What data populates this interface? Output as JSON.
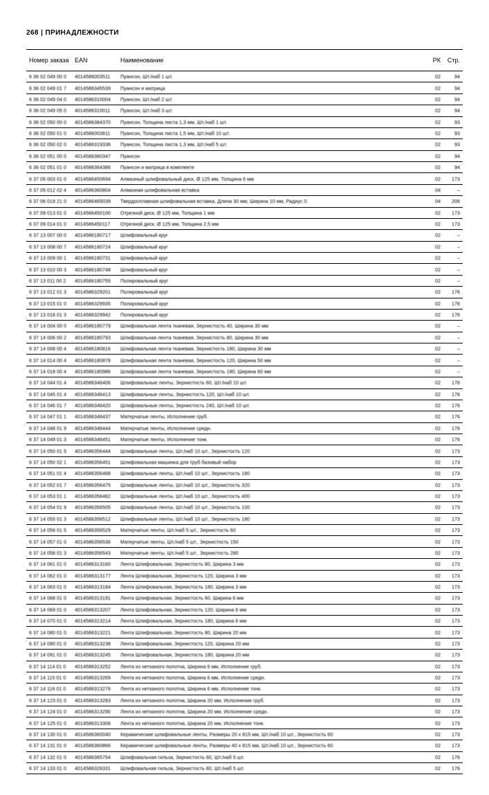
{
  "page_header": "268 | ПРИНАДЛЕЖНОСТИ",
  "columns": {
    "order": "Номер заказа",
    "ean": "EAN",
    "name": "Наименование",
    "rk": "РК",
    "pg": "Стр."
  },
  "rows": [
    {
      "order": "6 36 02 049 00 0",
      "ean": "4014586003511",
      "name": "Пуансон, Шт./наб 1 шт.",
      "rk": "02",
      "pg": "94"
    },
    {
      "order": "6 36 02 049 01 7",
      "ean": "4014586345539",
      "name": "Пуансон и матрица",
      "rk": "02",
      "pg": "94"
    },
    {
      "order": "6 36 02 049 04 0",
      "ean": "4014586310004",
      "name": "Пуансон, Шт./наб 2 шт.",
      "rk": "02",
      "pg": "94"
    },
    {
      "order": "6 36 02 049 05 0",
      "ean": "4014586310011",
      "name": "Пуансон, Шт./наб 3 шт.",
      "rk": "02",
      "pg": "94"
    },
    {
      "order": "6 36 02 050 00 0",
      "ean": "4014586384370",
      "name": "Пуансон, Толщина листа 1,3 мм, Шт./наб 1 шт.",
      "rk": "02",
      "pg": "93"
    },
    {
      "order": "6 36 02 050 01 0",
      "ean": "4014586003611",
      "name": "Пуансон, Толщина листа 1,5 мм, Шт./наб 10 шт.",
      "rk": "02",
      "pg": "93"
    },
    {
      "order": "6 36 02 050 02 0",
      "ean": "4014586319336",
      "name": "Пуансон, Толщина листа 1,3 мм, Шт./наб 5 шт.",
      "rk": "02",
      "pg": "93"
    },
    {
      "order": "6 36 02 051 00 0",
      "ean": "4014586360347",
      "name": "Пуансон",
      "rk": "02",
      "pg": "94"
    },
    {
      "order": "6 36 02 051 01 0",
      "ean": "4014586364386",
      "name": "Пуансон и матрица в комплекте",
      "rk": "02",
      "pg": "94"
    },
    {
      "order": "6 37 05 003 01 0",
      "ean": "4014586450694",
      "name": "Алмазный шлифовальный диск, Ø 125 мм, Толщина 6 мм",
      "rk": "02",
      "pg": "173"
    },
    {
      "order": "6 37 05 012 02 4",
      "ean": "4014586360804",
      "name": "Алмазная шлифовальная вставка",
      "rk": "04",
      "pg": "–"
    },
    {
      "order": "6 37 06 019 21 0",
      "ean": "4014586465039",
      "name": "Твердосплавная шлифовальная вставка, Длина 30 мм, Ширина 10 мм, Радиус 0.",
      "rk": "04",
      "pg": "206"
    },
    {
      "order": "6 37 09 013 01 0",
      "ean": "4014586450100",
      "name": "Отрезной диск, Ø 125 мм, Толщина 1 мм",
      "rk": "02",
      "pg": "173"
    },
    {
      "order": "6 37 09 014 01 0",
      "ean": "4014586450117",
      "name": "Отрезной диск, Ø 125 мм, Толщина 2,5 мм",
      "rk": "02",
      "pg": "173"
    },
    {
      "order": "6 37 13 007 00 0",
      "ean": "4014586180717",
      "name": "Шлифовальный круг",
      "rk": "02",
      "pg": "–"
    },
    {
      "order": "6 37 13 008 00 7",
      "ean": "4014586180724",
      "name": "Шлифовальный круг",
      "rk": "02",
      "pg": "–"
    },
    {
      "order": "6 37 13 009 00 1",
      "ean": "4014586180731",
      "name": "Шлифовальный круг",
      "rk": "02",
      "pg": "–"
    },
    {
      "order": "6 37 13 010 00 3",
      "ean": "4014586180748",
      "name": "Шлифовальный круг",
      "rk": "02",
      "pg": "–"
    },
    {
      "order": "6 37 13 011 00 2",
      "ean": "4014586180755",
      "name": "Полировальный круг",
      "rk": "02",
      "pg": "–"
    },
    {
      "order": "6 37 13 012 01 3",
      "ean": "4014586329201",
      "name": "Полировальный круг",
      "rk": "02",
      "pg": "176"
    },
    {
      "order": "6 37 13 015 01 0",
      "ean": "4014586329935",
      "name": "Полировальный круг",
      "rk": "02",
      "pg": "176"
    },
    {
      "order": "6 37 13 016 01 3",
      "ean": "4014586329942",
      "name": "Полировальный круг",
      "rk": "02",
      "pg": "176"
    },
    {
      "order": "6 37 14 004 00 0",
      "ean": "4014586180779",
      "name": "Шлифовальная лента тканевая, Зернистость 40, Ширина 30 мм",
      "rk": "02",
      "pg": "–"
    },
    {
      "order": "6 37 14 006 00 2",
      "ean": "4014586180793",
      "name": "Шлифовальная лента тканевая, Зернистость 80, Ширина 30 мм",
      "rk": "02",
      "pg": "–"
    },
    {
      "order": "6 37 14 008 00 4",
      "ean": "4014586180816",
      "name": "Шлифовальная лента тканевая, Зернистость 180, Ширина 30 мм",
      "rk": "02",
      "pg": "–"
    },
    {
      "order": "6 37 14 014 00 4",
      "ean": "4014586180878",
      "name": "Шлифовальная лента тканевая, Зернистость 120, Ширина 50 мм",
      "rk": "02",
      "pg": "–"
    },
    {
      "order": "6 37 14 018 00 4",
      "ean": "4014586180986",
      "name": "Шлифовальная лента тканевая, Зернистость 180, Ширина 60 мм",
      "rk": "02",
      "pg": "–"
    },
    {
      "order": "6 37 14 044 01 4",
      "ean": "4014586346406",
      "name": "Шлифовальные ленты, Зернистость 60, Шт./наб 10 шт.",
      "rk": "02",
      "pg": "176"
    },
    {
      "order": "6 37 14 045 01 4",
      "ean": "4014586346413",
      "name": "Шлифовальные ленты, Зернистость 120, Шт./наб 10 шт.",
      "rk": "02",
      "pg": "176"
    },
    {
      "order": "6 37 14 046 01 7",
      "ean": "4014586346420",
      "name": "Шлифовальные ленты, Зернистость 240, Шт./наб 10 шт.",
      "rk": "02",
      "pg": "176"
    },
    {
      "order": "6 37 14 047 01 1",
      "ean": "4014586346437",
      "name": "Матерчатые ленты, Исполнение груб.",
      "rk": "02",
      "pg": "176"
    },
    {
      "order": "6 37 14 048 01 9",
      "ean": "4014586346444",
      "name": "Матерчатые ленты, Исполнение средн.",
      "rk": "02",
      "pg": "176"
    },
    {
      "order": "6 37 14 049 01 3",
      "ean": "4014586346451",
      "name": "Матерчатые ленты, Исполнение тонк.",
      "rk": "02",
      "pg": "176"
    },
    {
      "order": "6 37 14 050 01 5",
      "ean": "4014586356444",
      "name": "Шлифовальные ленты, Шт./наб 10 шт., Зернистость 120",
      "rk": "02",
      "pg": "173"
    },
    {
      "order": "6 37 14 050 02 1",
      "ean": "4014586356451",
      "name": "Шлифовальная машинка для труб базовый набор",
      "rk": "02",
      "pg": "173"
    },
    {
      "order": "6 37 14 051 01 4",
      "ean": "4014586356468",
      "name": "Шлифовальные ленты, Шт./наб 10 шт., Зернистость 180",
      "rk": "02",
      "pg": "173"
    },
    {
      "order": "6 37 14 052 01 7",
      "ean": "4014586356475",
      "name": "Шлифовальные ленты, Шт./наб 10 шт., Зернистость 320",
      "rk": "02",
      "pg": "173"
    },
    {
      "order": "6 37 14 053 01 1",
      "ean": "4014586356482",
      "name": "Шлифовальные ленты, Шт./наб 10 шт., Зернистость 400",
      "rk": "02",
      "pg": "173"
    },
    {
      "order": "6 37 14 054 01 9",
      "ean": "4014586356505",
      "name": "Шлифовальные ленты, Шт./наб 10 шт., Зернистость 100",
      "rk": "02",
      "pg": "173"
    },
    {
      "order": "6 37 14 055 01 3",
      "ean": "4014586356512",
      "name": "Шлифовальные ленты, Шт./наб 10 шт., Зернистость 180",
      "rk": "02",
      "pg": "173"
    },
    {
      "order": "6 37 14 056 01 5",
      "ean": "4014586356529",
      "name": "Матерчатые ленты, Шт./наб 5 шт., Зернистость 60",
      "rk": "02",
      "pg": "173"
    },
    {
      "order": "6 37 14 057 01 0",
      "ean": "4014586356536",
      "name": "Матерчатые ленты, Шт./наб 5 шт., Зернистость 150",
      "rk": "02",
      "pg": "173"
    },
    {
      "order": "6 37 14 058 01 3",
      "ean": "4014586356543",
      "name": "Матерчатые ленты, Шт./наб 5 шт., Зернистость 280",
      "rk": "02",
      "pg": "173"
    },
    {
      "order": "6 37 14 061 01 0",
      "ean": "4014586313160",
      "name": "Лента Шлифовальная, Зернистость 80, Ширина 3 мм",
      "rk": "02",
      "pg": "173"
    },
    {
      "order": "6 37 14 062 01 0",
      "ean": "4014586313177",
      "name": "Лента Шлифовальная, Зернистость 120, Ширина 3 мм",
      "rk": "02",
      "pg": "173"
    },
    {
      "order": "6 37 14 063 01 0",
      "ean": "4014586313184",
      "name": "Лента Шлифовальная, Зернистость 180, Ширина 3 мм",
      "rk": "02",
      "pg": "173"
    },
    {
      "order": "6 37 14 068 01 0",
      "ean": "4014586313191",
      "name": "Лента Шлифовальная, Зернистость 60, Ширина 6 мм",
      "rk": "02",
      "pg": "173"
    },
    {
      "order": "6 37 14 069 01 0",
      "ean": "4014586313207",
      "name": "Лента Шлифовальная, Зернистость 120, Ширина 6 мм",
      "rk": "02",
      "pg": "173"
    },
    {
      "order": "6 37 14 070 01 0",
      "ean": "4014586313214",
      "name": "Лента Шлифовальная, Зернистость 180, Ширина 6 мм",
      "rk": "02",
      "pg": "173"
    },
    {
      "order": "6 37 14 080 01 0",
      "ean": "4014586313221",
      "name": "Лента Шлифовальная, Зернистость 80, Ширина 20 мм",
      "rk": "02",
      "pg": "173"
    },
    {
      "order": "6 37 14 090 01 0",
      "ean": "4014586313238",
      "name": "Лента Шлифовальная, Зернистость 120, Ширина 20 мм",
      "rk": "02",
      "pg": "173"
    },
    {
      "order": "6 37 14 091 01 0",
      "ean": "4014586313245",
      "name": "Лента Шлифовальная, Зернистость 180, Ширина 20 мм",
      "rk": "02",
      "pg": "173"
    },
    {
      "order": "6 37 14 114 01 0",
      "ean": "4014586313252",
      "name": "Лента из нетканого полотна, Ширина 6 мм, Исполнение груб.",
      "rk": "02",
      "pg": "173"
    },
    {
      "order": "6 37 14 115 01 0",
      "ean": "4014586313269",
      "name": "Лента из нетканого полотна, Ширина 6 мм, Исполнение средн.",
      "rk": "02",
      "pg": "173"
    },
    {
      "order": "6 37 14 116 01 0",
      "ean": "4014586313276",
      "name": "Лента из нетканого полотна, Ширина 6 мм, Исполнение тонк.",
      "rk": "02",
      "pg": "173"
    },
    {
      "order": "6 37 14 123 01 0",
      "ean": "4014586313283",
      "name": "Лента из нетканого полотна, Ширина 20 мм, Исполнение груб.",
      "rk": "02",
      "pg": "173"
    },
    {
      "order": "6 37 14 124 01 0",
      "ean": "4014586313290",
      "name": "Лента из нетканого полотна, Ширина 20 мм, Исполнение средн.",
      "rk": "02",
      "pg": "173"
    },
    {
      "order": "6 37 14 125 01 0",
      "ean": "4014586313306",
      "name": "Лента из нетканого полотна, Ширина 20 мм, Исполнение тонк.",
      "rk": "02",
      "pg": "173"
    },
    {
      "order": "6 37 14 130 01 0",
      "ean": "4014586360040",
      "name": "Керамические шлифовальные ленты, Размеры 20 x 815 мм, Шт./наб 10 шт., Зернистость 60",
      "rk": "02",
      "pg": "173"
    },
    {
      "order": "6 37 14 131 01 0",
      "ean": "4014586360866",
      "name": "Керамические шлифовальные ленты, Размеры 40 x 815 мм, Шт./наб 10 шт., Зернистость 60",
      "rk": "02",
      "pg": "173"
    },
    {
      "order": "6 37 14 132 01 0",
      "ean": "4014586365754",
      "name": "Шлифовальная гильза, Зернистость 60, Шт./наб 5 шт.",
      "rk": "02",
      "pg": "176"
    },
    {
      "order": "6 37 14 133 01 0",
      "ean": "4014586326331",
      "name": "Шлифовальная гильза, Зернистость 80, Шт./наб 5 шт.",
      "rk": "02",
      "pg": "176"
    }
  ]
}
